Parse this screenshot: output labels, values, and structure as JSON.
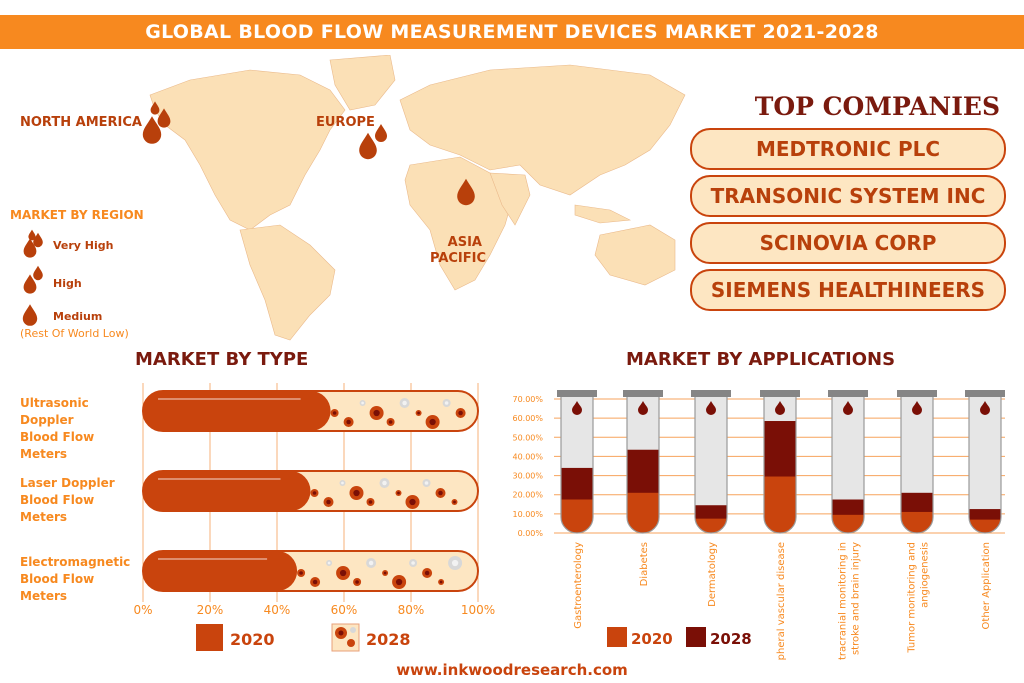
{
  "header": {
    "title": "GLOBAL BLOOD FLOW MEASUREMENT DEVICES MARKET 2021-2028"
  },
  "map": {
    "regions": [
      {
        "label": "NORTH AMERICA",
        "level": "Very High"
      },
      {
        "label": "EUROPE",
        "level": "High"
      },
      {
        "label": "ASIA PACIFIC",
        "level": "Medium"
      }
    ],
    "legend_title": "MARKET BY REGION",
    "legend": [
      "Very High",
      "High",
      "Medium"
    ],
    "legend_note": "(Rest Of World Low)"
  },
  "companies": {
    "title": "TOP COMPANIES",
    "items": [
      "MEDTRONIC PLC",
      "TRANSONIC SYSTEM INC",
      "SCINOVIA CORP",
      "SIEMENS HEALTHINEERS"
    ]
  },
  "colors": {
    "accent": "#f7891f",
    "y2020": "#c9440d",
    "y2028": "#7a0f06",
    "map": "#fbe0b6",
    "title": "#7a1a0e"
  },
  "chart_data": [
    {
      "type": "bar",
      "title": "MARKET BY TYPE",
      "orientation": "horizontal",
      "categories": [
        "Ultrasonic Doppler Blood Flow Meters",
        "Laser Doppler Blood Flow Meters",
        "Electromagnetic Blood Flow Meters"
      ],
      "category_lines": [
        [
          "Ultrasonic Doppler",
          "Blood Flow Meters"
        ],
        [
          "Laser Doppler",
          "Blood Flow Meters"
        ],
        [
          "Electromagnetic",
          "Blood Flow Meters"
        ]
      ],
      "series": [
        {
          "name": "2020",
          "values": [
            56,
            50,
            46
          ]
        },
        {
          "name": "2028",
          "values": [
            100,
            100,
            100
          ]
        }
      ],
      "xlim": [
        0,
        100
      ],
      "xticks": [
        "0%",
        "20%",
        "40%",
        "60%",
        "80%",
        "100%"
      ],
      "grid": true,
      "legend": "bottom"
    },
    {
      "type": "bar",
      "title": "MARKET BY APPLICATIONS",
      "categories": [
        "Gastroenterology",
        "Diabetes",
        "Dermatology",
        "Peripheral vascular disease",
        "Intracranial monitoring in stroke and brain injury",
        "Tumor monitoring and angiogenesis",
        "Other Application"
      ],
      "category_lines": [
        [
          "Gastroenterology"
        ],
        [
          "Diabetes"
        ],
        [
          "Dermatology"
        ],
        [
          "Peripheral vascular disease"
        ],
        [
          "Intracranial monitoring in",
          "stroke and brain injury"
        ],
        [
          "Tumor monitoring and",
          "angiogenesis"
        ],
        [
          "Other Application"
        ]
      ],
      "series": [
        {
          "name": "2020",
          "values": [
            17.5,
            21,
            7.5,
            29.5,
            9.5,
            11,
            7
          ]
        },
        {
          "name": "2028",
          "values": [
            34,
            43.5,
            14.5,
            58.5,
            17.5,
            21,
            12.5
          ]
        }
      ],
      "ylim": [
        0,
        70
      ],
      "yticks": [
        "0.00%",
        "10.00%",
        "20.00%",
        "30.00%",
        "40.00%",
        "50.00%",
        "60.00%",
        "70.00%"
      ],
      "grid": true,
      "legend": "bottom"
    }
  ],
  "footer": {
    "url": "www.inkwoodresearch.com"
  }
}
